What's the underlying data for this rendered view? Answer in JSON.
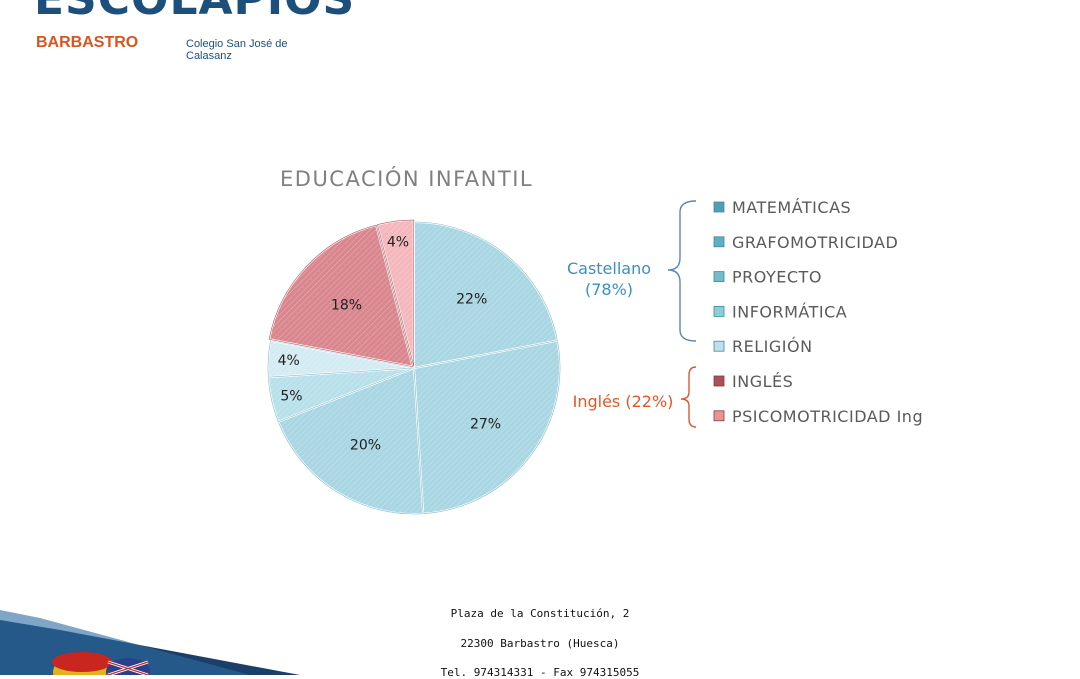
{
  "logo": {
    "word": "ESCOLAPIOS",
    "city": "BARBASTRO",
    "subtitle": "Colegio San José de Calasanz"
  },
  "chart_data": {
    "type": "pie",
    "title": "EDUCACIÓN INFANTIL",
    "slices": [
      {
        "name": "MATEMÁTICAS",
        "value": 22,
        "label": "22%",
        "color": "#a9d6e3"
      },
      {
        "name": "GRAFOMOTRICIDAD",
        "value": 27,
        "label": "27%",
        "color": "#a9d6e3"
      },
      {
        "name": "PROYECTO",
        "value": 20,
        "label": "20%",
        "color": "#a9d6e3"
      },
      {
        "name": "INFORMÁTICA",
        "value": 5,
        "label": "5%",
        "color": "#b8e0ea"
      },
      {
        "name": "RELIGIÓN",
        "value": 4,
        "label": "4%",
        "color": "#d3ebf2"
      },
      {
        "name": "INGLÉS",
        "value": 18,
        "label": "18%",
        "color": "#d9868e"
      },
      {
        "name": "PSICOMOTRICIDAD Ing",
        "value": 4,
        "label": "4%",
        "color": "#f3b7bc"
      }
    ],
    "legend": {
      "entries": [
        "MATEMÁTICAS",
        "GRAFOMOTRICIDAD",
        "PROYECTO",
        "INFORMÁTICA",
        "RELIGIÓN",
        "INGLÉS",
        "PSICOMOTRICIDAD Ing"
      ],
      "marker_colors": [
        "#4f9fb6",
        "#62adc2",
        "#73bccd",
        "#8dccd9",
        "#bfe0ea",
        "#a8535b",
        "#e8939a"
      ],
      "placement": "right"
    },
    "groups": [
      {
        "label": "Castellano",
        "sub": "(78%)",
        "color": "#3a8fc4"
      },
      {
        "label": "Inglés (22%)",
        "sub": "",
        "color": "#e0562b"
      }
    ]
  },
  "footer": {
    "address": "Plaza de la Constitución, 2",
    "city": "22300 Barbastro (Huesca)",
    "phone": "Tel. 974314331  -  Fax 974315055"
  },
  "colors": {
    "brand_blue": "#1d4f7c",
    "brand_orange": "#d9541e",
    "title_gray": "#808080"
  }
}
